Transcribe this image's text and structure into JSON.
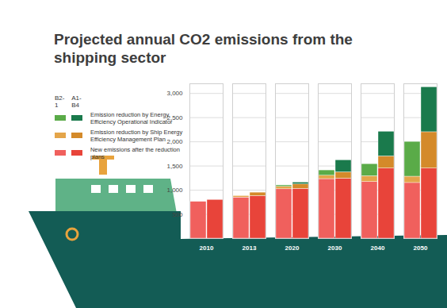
{
  "chart_data": {
    "type": "bar",
    "stacked": true,
    "title": "Projected annual CO2 emissions from the shipping sector",
    "categories": [
      "2010",
      "2013",
      "2020",
      "2030",
      "2040",
      "2050"
    ],
    "ylim": [
      0,
      3200
    ],
    "yticks": [
      500,
      1000,
      1500,
      2000,
      2500,
      3000
    ],
    "grid": true,
    "groups": [
      {
        "name": "B2-1",
        "series": [
          {
            "name": "New emissions after the reduction plans",
            "color": "#f0605d",
            "values": [
              760,
              850,
              1020,
              1230,
              1170,
              1150
            ]
          },
          {
            "name": "Emission reduction by Ship Energy Efficiency Management Plan",
            "color": "#e4a54a",
            "values": [
              0,
              30,
              50,
              70,
              120,
              130
            ]
          },
          {
            "name": "Emission reduction by Energy Efficiency Operational Indicator",
            "color": "#5aab48",
            "values": [
              0,
              0,
              30,
              110,
              250,
              720
            ]
          }
        ]
      },
      {
        "name": "A1-B4",
        "series": [
          {
            "name": "New emissions after the reduction plans",
            "color": "#e8443a",
            "values": [
              800,
              880,
              1030,
              1240,
              1450,
              1450
            ]
          },
          {
            "name": "Emission reduction by Ship Energy Efficiency Management Plan",
            "color": "#d48a2a",
            "values": [
              0,
              70,
              90,
              130,
              250,
              750
            ]
          },
          {
            "name": "Emission reduction by Energy Efficiency Operational Indicator",
            "color": "#1a7a4c",
            "values": [
              0,
              0,
              40,
              250,
              510,
              930
            ]
          }
        ]
      }
    ]
  }
}
